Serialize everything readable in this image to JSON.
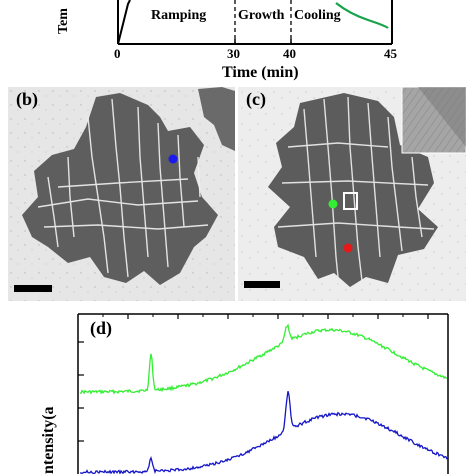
{
  "panel_a": {
    "y_label_fragment": "Tem",
    "phases": [
      "Ramping",
      "Growth",
      "Cooling"
    ],
    "x_ticks": [
      "0",
      "30",
      "40",
      "45"
    ],
    "x_label": "Time (min)"
  },
  "panel_b": {
    "label": "(b)"
  },
  "panel_c": {
    "label": "(c)"
  },
  "panel_d": {
    "label": "(d)",
    "y_label_fragment": "ntensity(a"
  },
  "colors": {
    "temperature_curve": "#16a34a",
    "spectrum_top": "#33ee33",
    "spectrum_bottom": "#1515c8",
    "marker_blue": "#1a1af0",
    "marker_green": "#33ee33",
    "marker_red": "#e81818"
  }
}
